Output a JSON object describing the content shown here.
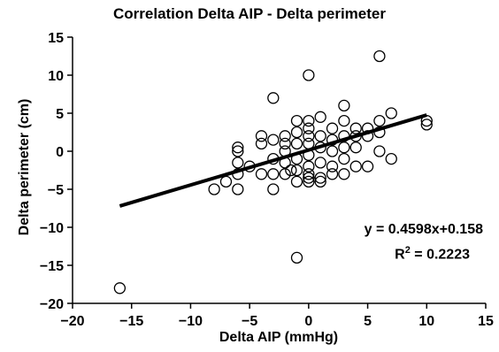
{
  "chart_data": {
    "type": "scatter",
    "title": "Correlation Delta AIP - Delta perimeter",
    "xlabel": "Delta AIP (mmHg)",
    "ylabel": "Delta perimeter (cm)",
    "xlim": [
      -20,
      15
    ],
    "ylim": [
      -20,
      15
    ],
    "xticks": [
      -20,
      -15,
      -10,
      -5,
      0,
      5,
      10,
      15
    ],
    "yticks": [
      -20,
      -15,
      -10,
      -5,
      0,
      5,
      10,
      15
    ],
    "xtick_labels": [
      "−20",
      "−15",
      "−10",
      "−5",
      "0",
      "5",
      "10",
      "15"
    ],
    "ytick_labels": [
      "−20",
      "−15",
      "−10",
      "−5",
      "0",
      "5",
      "10",
      "15"
    ],
    "grid": false,
    "trendline": {
      "slope": 0.4598,
      "intercept": 0.158,
      "x_range": [
        -16,
        10
      ]
    },
    "equation_label": "y = 0.4598x+0.158",
    "r2_label": "R",
    "r2_superscript": "2",
    "r2_value": " = 0.2223",
    "points": [
      [
        -16,
        -18
      ],
      [
        -8,
        -5
      ],
      [
        -7,
        -4
      ],
      [
        -6,
        -5
      ],
      [
        -6,
        0.5
      ],
      [
        -6,
        0
      ],
      [
        -6,
        -1.5
      ],
      [
        -6,
        -3
      ],
      [
        -5,
        -2
      ],
      [
        -4,
        2
      ],
      [
        -4,
        1
      ],
      [
        -4,
        -3
      ],
      [
        -3,
        7
      ],
      [
        -3,
        1.5
      ],
      [
        -3,
        -1
      ],
      [
        -3,
        -3
      ],
      [
        -3,
        -5
      ],
      [
        -2,
        2
      ],
      [
        -2,
        1
      ],
      [
        -2,
        0
      ],
      [
        -2,
        -1.5
      ],
      [
        -2,
        -3
      ],
      [
        -1.5,
        -2.5
      ],
      [
        -1,
        4
      ],
      [
        -1,
        2.5
      ],
      [
        -1,
        1
      ],
      [
        -1,
        -1
      ],
      [
        -1,
        -2.5
      ],
      [
        -1,
        -4
      ],
      [
        -1,
        -14
      ],
      [
        0,
        10
      ],
      [
        0,
        4
      ],
      [
        0,
        3
      ],
      [
        0,
        2
      ],
      [
        0,
        1
      ],
      [
        0,
        -0.5
      ],
      [
        0,
        -2
      ],
      [
        0,
        -3
      ],
      [
        0,
        -3.5
      ],
      [
        0,
        -4
      ],
      [
        1,
        4.5
      ],
      [
        1,
        2
      ],
      [
        1,
        0.5
      ],
      [
        1,
        -1.5
      ],
      [
        1,
        -3.5
      ],
      [
        1,
        -4
      ],
      [
        2,
        3
      ],
      [
        2,
        1.5
      ],
      [
        2,
        0
      ],
      [
        2,
        -2
      ],
      [
        2,
        -3
      ],
      [
        3,
        6
      ],
      [
        3,
        4
      ],
      [
        3,
        2
      ],
      [
        3,
        0.5
      ],
      [
        3,
        -1
      ],
      [
        3,
        -3
      ],
      [
        4,
        3
      ],
      [
        4,
        2
      ],
      [
        4,
        0.5
      ],
      [
        4,
        -2
      ],
      [
        5,
        3
      ],
      [
        5,
        2
      ],
      [
        5,
        -2
      ],
      [
        6,
        12.5
      ],
      [
        6,
        4
      ],
      [
        6,
        2.5
      ],
      [
        6,
        0
      ],
      [
        7,
        5
      ],
      [
        7,
        -1
      ],
      [
        10,
        3.5
      ],
      [
        10,
        4
      ]
    ]
  }
}
